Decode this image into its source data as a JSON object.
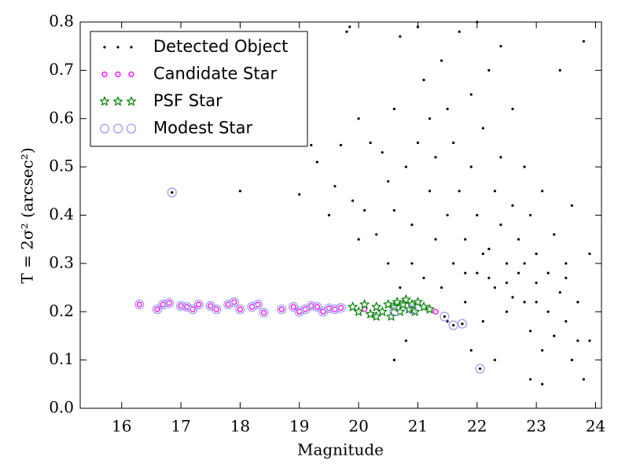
{
  "chart_data": {
    "type": "scatter",
    "x_label": "Magnitude",
    "y_label": "T = 2σ² (arcsec²)",
    "xlim": [
      15.3,
      24.1
    ],
    "ylim": [
      0,
      0.8
    ],
    "xticks": [
      16,
      17,
      18,
      19,
      20,
      21,
      22,
      23,
      24
    ],
    "yticks": [
      {
        "value": 0,
        "label": "0.0"
      },
      0.1,
      0.2,
      0.3,
      0.4,
      0.5,
      0.6,
      0.7,
      0.8
    ],
    "legend": "upper left",
    "series": [
      {
        "name": "Detected Object",
        "color": "#000000",
        "marker": "dot",
        "x": [
          16.85,
          18.0,
          19.0,
          19.2,
          19.3,
          19.5,
          19.6,
          19.7,
          19.8,
          19.85,
          19.9,
          20.0,
          20.0,
          20.1,
          20.2,
          20.3,
          20.4,
          20.5,
          20.5,
          20.6,
          20.6,
          20.7,
          20.7,
          20.8,
          20.9,
          20.9,
          21.0,
          21.0,
          21.1,
          21.1,
          21.2,
          21.2,
          21.3,
          21.3,
          21.4,
          21.4,
          21.5,
          21.5,
          21.6,
          21.6,
          21.7,
          21.7,
          21.8,
          21.8,
          21.9,
          21.9,
          22.0,
          22.0,
          22.1,
          22.1,
          22.2,
          22.2,
          22.3,
          22.3,
          22.4,
          22.4,
          22.5,
          22.5,
          22.6,
          22.6,
          22.7,
          22.7,
          22.8,
          22.8,
          22.9,
          22.9,
          23.0,
          23.0,
          23.1,
          23.1,
          23.2,
          23.2,
          23.3,
          23.3,
          23.4,
          23.4,
          23.5,
          23.5,
          23.6,
          23.6,
          23.7,
          23.7,
          23.8,
          23.8,
          23.9,
          23.9,
          22.4,
          22.0,
          21.9,
          22.3,
          22.9,
          23.1,
          21.5,
          20.6,
          20.8,
          22.6,
          22.2,
          23.0,
          22.5,
          21.8,
          23.5,
          22.8,
          22.1,
          22.05,
          21.45,
          21.6,
          21.75
        ],
        "values": [
          0.447,
          0.45,
          0.443,
          0.545,
          0.51,
          0.4,
          0.46,
          0.545,
          0.78,
          0.79,
          0.43,
          0.35,
          0.6,
          0.41,
          0.55,
          0.36,
          0.53,
          0.3,
          0.47,
          0.41,
          0.62,
          0.77,
          0.25,
          0.5,
          0.3,
          0.38,
          0.55,
          0.79,
          0.68,
          0.27,
          0.45,
          0.6,
          0.35,
          0.52,
          0.25,
          0.72,
          0.4,
          0.62,
          0.3,
          0.55,
          0.78,
          0.45,
          0.22,
          0.35,
          0.5,
          0.65,
          0.28,
          0.4,
          0.18,
          0.58,
          0.33,
          0.7,
          0.25,
          0.45,
          0.38,
          0.52,
          0.2,
          0.3,
          0.62,
          0.42,
          0.28,
          0.35,
          0.22,
          0.5,
          0.16,
          0.4,
          0.26,
          0.32,
          0.12,
          0.45,
          0.2,
          0.28,
          0.15,
          0.36,
          0.24,
          0.7,
          0.18,
          0.3,
          0.1,
          0.42,
          0.22,
          0.14,
          0.06,
          0.76,
          0.14,
          0.32,
          0.75,
          0.8,
          0.12,
          0.1,
          0.06,
          0.05,
          0.18,
          0.1,
          0.14,
          0.23,
          0.27,
          0.22,
          0.26,
          0.28,
          0.27,
          0.3,
          0.32,
          0.082,
          0.19,
          0.172,
          0.175
        ]
      },
      {
        "name": "Candidate Star",
        "color": "#ff00ff",
        "marker": "circle",
        "x": [
          16.3,
          16.6,
          16.7,
          16.8,
          17.0,
          17.1,
          17.2,
          17.3,
          17.5,
          17.6,
          17.8,
          17.9,
          18.0,
          18.2,
          18.3,
          18.4,
          18.7,
          18.9,
          19.0,
          19.1,
          19.2,
          19.3,
          19.4,
          19.5,
          19.6,
          19.7,
          20.1,
          21.3
        ],
        "values": [
          0.215,
          0.205,
          0.215,
          0.218,
          0.212,
          0.21,
          0.205,
          0.215,
          0.212,
          0.205,
          0.215,
          0.22,
          0.205,
          0.21,
          0.215,
          0.198,
          0.205,
          0.21,
          0.2,
          0.205,
          0.212,
          0.21,
          0.2,
          0.207,
          0.205,
          0.208,
          0.205,
          0.2
        ]
      },
      {
        "name": "PSF Star",
        "color": "#008000",
        "marker": "star",
        "x": [
          19.9,
          20.0,
          20.1,
          20.2,
          20.3,
          20.4,
          20.5,
          20.55,
          20.6,
          20.65,
          20.7,
          20.75,
          20.8,
          20.85,
          20.9,
          20.95,
          21.0,
          21.1,
          21.2,
          20.3
        ],
        "values": [
          0.21,
          0.2,
          0.215,
          0.195,
          0.21,
          0.2,
          0.215,
          0.19,
          0.21,
          0.22,
          0.2,
          0.215,
          0.225,
          0.205,
          0.215,
          0.2,
          0.22,
          0.21,
          0.205,
          0.19
        ]
      },
      {
        "name": "Modest Star",
        "color": "#9999ee",
        "marker": "open-circle",
        "x": [
          16.3,
          16.6,
          16.7,
          16.8,
          17.0,
          17.1,
          17.2,
          17.3,
          17.5,
          17.6,
          17.8,
          17.9,
          18.0,
          18.2,
          18.3,
          18.4,
          18.7,
          18.9,
          19.0,
          19.1,
          19.2,
          19.3,
          19.4,
          19.5,
          19.6,
          19.7,
          16.85,
          21.45,
          21.6,
          21.75,
          22.05,
          20.6,
          20.9
        ],
        "values": [
          0.215,
          0.205,
          0.215,
          0.218,
          0.212,
          0.21,
          0.205,
          0.215,
          0.212,
          0.205,
          0.215,
          0.22,
          0.205,
          0.21,
          0.215,
          0.198,
          0.205,
          0.21,
          0.2,
          0.205,
          0.212,
          0.21,
          0.2,
          0.207,
          0.205,
          0.208,
          0.447,
          0.19,
          0.172,
          0.175,
          0.082,
          0.2,
          0.205
        ]
      }
    ]
  }
}
